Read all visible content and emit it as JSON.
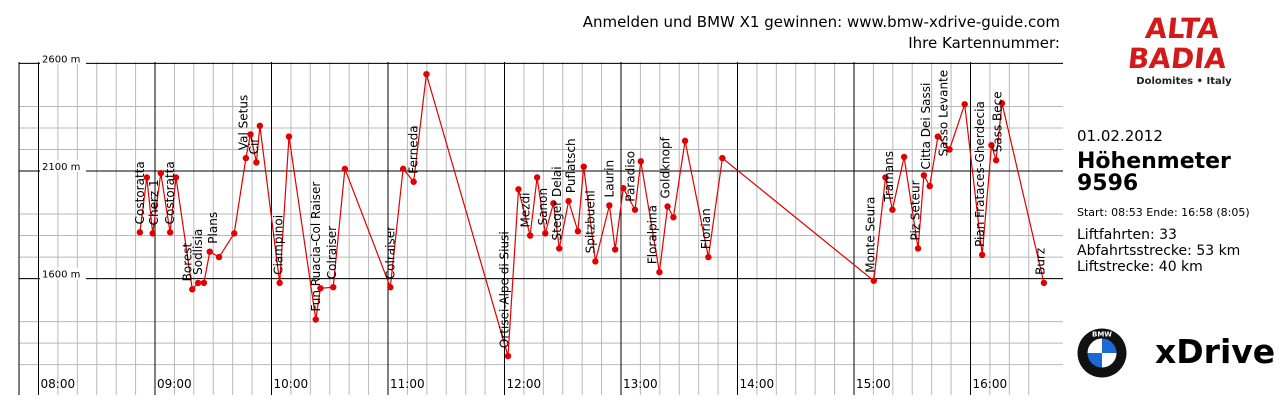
{
  "promo": {
    "line1": "Anmelden und BMW X1 gewinnen: www.bmw-xdrive-guide.com",
    "line2": "Ihre Kartennummer:"
  },
  "brand": {
    "logo_line1": "ALTA",
    "logo_line2": "BADIA",
    "tagline": "Dolomites • Italy"
  },
  "summary": {
    "date": "01.02.2012",
    "title": "Höhenmeter",
    "value": "9596",
    "times": "Start: 08:53 Ende: 16:58 (8:05)",
    "lift_rides": "Liftfahrten: 33",
    "downhill": "Abfahrtsstrecke: 53 km",
    "lift_distance": "Liftstrecke: 40 km"
  },
  "sponsor": {
    "bmw": "BMW",
    "xdrive": "xDrive"
  },
  "chart_data": {
    "type": "line",
    "color": "#e00000",
    "xlim": [
      7.75,
      16.65
    ],
    "ylim": [
      1100,
      2700
    ],
    "y_ticks": [
      {
        "value": 2600,
        "label": "2600 m"
      },
      {
        "value": 2100,
        "label": "2100 m"
      },
      {
        "value": 1600,
        "label": "1600 m"
      }
    ],
    "x_ticks": [
      {
        "value": 8,
        "label": "08:00"
      },
      {
        "value": 9,
        "label": "09:00"
      },
      {
        "value": 10,
        "label": "10:00"
      },
      {
        "value": 11,
        "label": "11:00"
      },
      {
        "value": 12,
        "label": "12:00"
      },
      {
        "value": 13,
        "label": "13:00"
      },
      {
        "value": 14,
        "label": "14:00"
      },
      {
        "value": 15,
        "label": "15:00"
      },
      {
        "value": 16,
        "label": "16:00"
      }
    ],
    "points": [
      {
        "t": 8.87,
        "h": 1815
      },
      {
        "t": 8.93,
        "h": 2070
      },
      {
        "t": 8.98,
        "h": 1810
      },
      {
        "t": 9.05,
        "h": 2090
      },
      {
        "t": 9.13,
        "h": 1815
      },
      {
        "t": 9.18,
        "h": 2070
      },
      {
        "t": 9.32,
        "h": 1550
      },
      {
        "t": 9.37,
        "h": 1580
      },
      {
        "t": 9.42,
        "h": 1580
      },
      {
        "t": 9.47,
        "h": 1725
      },
      {
        "t": 9.55,
        "h": 1700
      },
      {
        "t": 9.68,
        "h": 1810
      },
      {
        "t": 9.78,
        "h": 2160
      },
      {
        "t": 9.82,
        "h": 2270
      },
      {
        "t": 9.87,
        "h": 2140
      },
      {
        "t": 9.9,
        "h": 2310
      },
      {
        "t": 10.07,
        "h": 1580
      },
      {
        "t": 10.15,
        "h": 2260
      },
      {
        "t": 10.38,
        "h": 1410
      },
      {
        "t": 10.42,
        "h": 1555
      },
      {
        "t": 10.53,
        "h": 1560
      },
      {
        "t": 10.63,
        "h": 2110
      },
      {
        "t": 11.02,
        "h": 1560
      },
      {
        "t": 11.13,
        "h": 2110
      },
      {
        "t": 11.22,
        "h": 2050
      },
      {
        "t": 11.33,
        "h": 2550
      },
      {
        "t": 12.03,
        "h": 1240
      },
      {
        "t": 12.12,
        "h": 2015
      },
      {
        "t": 12.22,
        "h": 1800
      },
      {
        "t": 12.28,
        "h": 2070
      },
      {
        "t": 12.35,
        "h": 1810
      },
      {
        "t": 12.42,
        "h": 1950
      },
      {
        "t": 12.47,
        "h": 1740
      },
      {
        "t": 12.55,
        "h": 1960
      },
      {
        "t": 12.63,
        "h": 1820
      },
      {
        "t": 12.68,
        "h": 2120
      },
      {
        "t": 12.78,
        "h": 1680
      },
      {
        "t": 12.9,
        "h": 1940
      },
      {
        "t": 12.95,
        "h": 1735
      },
      {
        "t": 13.02,
        "h": 2020
      },
      {
        "t": 13.12,
        "h": 1920
      },
      {
        "t": 13.17,
        "h": 2145
      },
      {
        "t": 13.33,
        "h": 1630
      },
      {
        "t": 13.4,
        "h": 1935
      },
      {
        "t": 13.45,
        "h": 1885
      },
      {
        "t": 13.55,
        "h": 2240
      },
      {
        "t": 13.75,
        "h": 1700
      },
      {
        "t": 13.87,
        "h": 2160
      },
      {
        "t": 15.17,
        "h": 1590
      },
      {
        "t": 15.27,
        "h": 2070
      },
      {
        "t": 15.33,
        "h": 1920
      },
      {
        "t": 15.43,
        "h": 2165
      },
      {
        "t": 15.55,
        "h": 1740
      },
      {
        "t": 15.6,
        "h": 2080
      },
      {
        "t": 15.65,
        "h": 2030
      },
      {
        "t": 15.72,
        "h": 2260
      },
      {
        "t": 15.82,
        "h": 2200
      },
      {
        "t": 15.95,
        "h": 2410
      },
      {
        "t": 16.1,
        "h": 1710
      },
      {
        "t": 16.18,
        "h": 2220
      },
      {
        "t": 16.22,
        "h": 2150
      },
      {
        "t": 16.27,
        "h": 2415
      },
      {
        "t": 16.63,
        "h": 1580
      }
    ],
    "labels": [
      {
        "name": "Costoratta",
        "t": 8.87
      },
      {
        "name": "Cherz 1",
        "t": 8.99
      },
      {
        "name": "Costoratta",
        "t": 9.13
      },
      {
        "name": "Borest",
        "t": 9.28
      },
      {
        "name": "Sodlisia",
        "t": 9.37
      },
      {
        "name": "Plans",
        "t": 9.5
      },
      {
        "name": "Val Setus",
        "t": 9.76
      },
      {
        "name": "Cir",
        "t": 9.85
      },
      {
        "name": "Ciampinoi",
        "t": 10.06
      },
      {
        "name": "Fun Ruacia-Col Raiser",
        "t": 10.38
      },
      {
        "name": "Colraiser",
        "t": 10.52
      },
      {
        "name": "Colraiser",
        "t": 11.02
      },
      {
        "name": "Ferneda",
        "t": 11.22
      },
      {
        "name": "Ortisei-Alpe di Siusi",
        "t": 12.0
      },
      {
        "name": "Mezdi",
        "t": 12.18
      },
      {
        "name": "Sanon",
        "t": 12.33
      },
      {
        "name": "Steger Delai",
        "t": 12.45
      },
      {
        "name": "Puflatsch",
        "t": 12.57
      },
      {
        "name": "Spitzbuehl",
        "t": 12.74
      },
      {
        "name": "Laurin",
        "t": 12.9
      },
      {
        "name": "Paradiso",
        "t": 13.08
      },
      {
        "name": "Floralpina",
        "t": 13.27
      },
      {
        "name": "Goldknopf",
        "t": 13.38
      },
      {
        "name": "Florian",
        "t": 13.73
      },
      {
        "name": "Monte Seura",
        "t": 15.14
      },
      {
        "name": "Tramans",
        "t": 15.3
      },
      {
        "name": "Piz Seteur",
        "t": 15.53
      },
      {
        "name": "Citta Dei Sassi",
        "t": 15.62
      },
      {
        "name": "Sasso Levante",
        "t": 15.77
      },
      {
        "name": "Pian Frataces-Gherdecia",
        "t": 16.08
      },
      {
        "name": "Sass Bece",
        "t": 16.23
      },
      {
        "name": "Burz",
        "t": 16.6
      }
    ]
  }
}
